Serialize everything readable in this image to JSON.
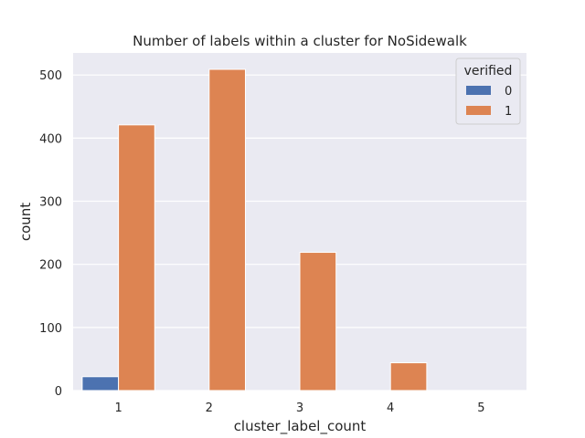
{
  "chart_data": {
    "type": "bar",
    "title": "Number of labels within a cluster for NoSidewalk",
    "xlabel": "cluster_label_count",
    "ylabel": "count",
    "categories": [
      "1",
      "2",
      "3",
      "4",
      "5"
    ],
    "series": [
      {
        "name": "0",
        "values": [
          22,
          0,
          0,
          0,
          0
        ],
        "color": "#4c72b0"
      },
      {
        "name": "1",
        "values": [
          421,
          509,
          219,
          44,
          0
        ],
        "color": "#dd8452"
      }
    ],
    "ylim": [
      0,
      535
    ],
    "yticks": [
      0,
      100,
      200,
      300,
      400,
      500
    ],
    "grid": true,
    "legend": {
      "title": "verified",
      "placement": "top-right"
    }
  }
}
